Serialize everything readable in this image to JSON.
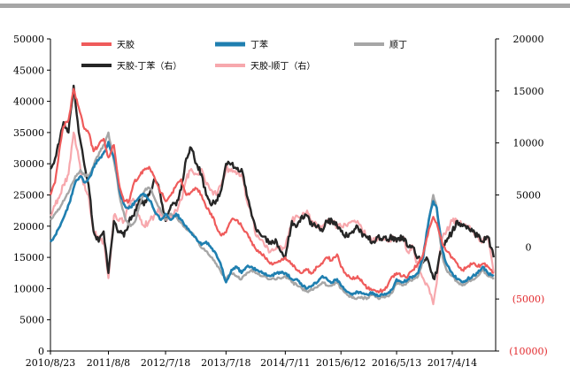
{
  "chart_data": {
    "type": "line",
    "title": "",
    "xlabel": "",
    "ylabel": "",
    "ylim": [
      0,
      50000
    ],
    "y2lim": [
      -10000,
      20000
    ],
    "y_ticks": [
      "0",
      "5000",
      "10000",
      "15000",
      "20000",
      "25000",
      "30000",
      "35000",
      "40000",
      "45000",
      "50000"
    ],
    "y2_ticks": [
      "(10000)",
      "(5000)",
      "0",
      "5000",
      "10000",
      "15000",
      "20000"
    ],
    "x_ticks": [
      "2010/8/23",
      "2011/8/8",
      "2012/7/18",
      "2013/7/18",
      "2014/7/11",
      "2015/6/12",
      "2016/5/13",
      "2017/4/14"
    ],
    "x_range": [
      "2010/8/23",
      "2018/1/1"
    ],
    "legend_placement": "top",
    "grid": false,
    "colors": {
      "tianjiao": "#ef5b5b",
      "dingben": "#1f7fb0",
      "shunding": "#a6a6a6",
      "tj_db": "#262626",
      "tj_sd": "#f7a8ad",
      "negative_tick": "#e2282c"
    },
    "series": [
      {
        "name": "天胶",
        "key": "tianjiao",
        "axis": "left",
        "x": [
          "2010/8/23",
          "2010/9/20",
          "2010/10/20",
          "2010/11/10",
          "2010/12/10",
          "2011/1/10",
          "2011/2/10",
          "2011/3/10",
          "2011/4/10",
          "2011/5/10",
          "2011/6/10",
          "2011/7/10",
          "2011/8/8",
          "2011/9/10",
          "2011/10/10",
          "2011/11/10",
          "2011/12/10",
          "2012/1/10",
          "2012/2/10",
          "2012/3/10",
          "2012/4/10",
          "2012/5/10",
          "2012/6/10",
          "2012/7/18",
          "2012/8/20",
          "2012/9/20",
          "2012/10/20",
          "2012/11/20",
          "2012/12/20",
          "2013/1/20",
          "2013/2/20",
          "2013/3/20",
          "2013/4/20",
          "2013/5/20",
          "2013/6/20",
          "2013/7/18",
          "2013/8/20",
          "2013/9/20",
          "2013/10/20",
          "2013/11/20",
          "2013/12/20",
          "2014/1/20",
          "2014/3/1",
          "2014/4/10",
          "2014/5/20",
          "2014/7/11",
          "2014/8/20",
          "2014/9/20",
          "2014/10/20",
          "2014/11/20",
          "2014/12/20",
          "2015/1/20",
          "2015/2/20",
          "2015/3/20",
          "2015/4/20",
          "2015/5/20",
          "2015/6/12",
          "2015/7/20",
          "2015/8/20",
          "2015/9/20",
          "2015/10/20",
          "2015/11/20",
          "2015/12/20",
          "2016/1/20",
          "2016/2/20",
          "2016/3/20",
          "2016/4/20",
          "2016/5/13",
          "2016/6/20",
          "2016/7/20",
          "2016/8/20",
          "2016/9/20",
          "2016/10/20",
          "2016/11/10",
          "2016/12/1",
          "2016/12/20",
          "2017/1/10",
          "2017/1/25",
          "2017/2/15",
          "2017/3/10",
          "2017/4/14",
          "2017/5/15",
          "2017/6/15",
          "2017/7/15",
          "2017/8/15",
          "2017/9/15",
          "2017/10/15",
          "2017/11/15",
          "2017/12/20"
        ],
        "values": [
          25000,
          27000,
          33000,
          36000,
          37000,
          42000,
          39000,
          36000,
          35000,
          32000,
          33000,
          34000,
          31000,
          33000,
          27000,
          24000,
          24000,
          27000,
          28000,
          29000,
          29500,
          28000,
          26000,
          24000,
          25000,
          26500,
          27500,
          25000,
          25500,
          26000,
          25000,
          23000,
          22000,
          20000,
          18500,
          19000,
          21000,
          21000,
          20000,
          19000,
          17500,
          16000,
          15500,
          14000,
          14200,
          15000,
          14000,
          13000,
          12500,
          13000,
          12500,
          13500,
          14000,
          15000,
          14500,
          15500,
          13500,
          12000,
          11500,
          12000,
          11000,
          10000,
          9800,
          9600,
          9700,
          10500,
          12000,
          12500,
          12000,
          12000,
          13000,
          14000,
          15500,
          18000,
          20000,
          21500,
          20500,
          19000,
          17000,
          16000,
          15000,
          14000,
          13000,
          13500,
          14000,
          13500,
          14000,
          13500,
          12500
        ]
      },
      {
        "name": "丁苯",
        "key": "dingben",
        "axis": "left",
        "x": [
          "2010/8/23",
          "2010/9/20",
          "2010/10/20",
          "2010/11/20",
          "2010/12/20",
          "2011/1/20",
          "2011/2/20",
          "2011/3/20",
          "2011/4/20",
          "2011/5/20",
          "2011/6/20",
          "2011/7/20",
          "2011/8/8",
          "2011/9/20",
          "2011/10/20",
          "2011/11/20",
          "2011/12/20",
          "2012/1/20",
          "2012/2/20",
          "2012/3/20",
          "2012/4/20",
          "2012/5/20",
          "2012/6/20",
          "2012/7/18",
          "2012/8/20",
          "2012/9/20",
          "2012/10/20",
          "2012/11/20",
          "2012/12/20",
          "2013/1/20",
          "2013/2/20",
          "2013/3/20",
          "2013/4/20",
          "2013/5/20",
          "2013/6/20",
          "2013/7/18",
          "2013/8/20",
          "2013/9/20",
          "2013/10/20",
          "2013/11/20",
          "2013/12/20",
          "2014/1/20",
          "2014/3/1",
          "2014/4/10",
          "2014/5/20",
          "2014/7/11",
          "2014/8/20",
          "2014/9/20",
          "2014/10/20",
          "2014/11/20",
          "2014/12/20",
          "2015/1/20",
          "2015/2/20",
          "2015/3/20",
          "2015/4/20",
          "2015/5/20",
          "2015/6/12",
          "2015/7/20",
          "2015/8/20",
          "2015/9/20",
          "2015/10/20",
          "2015/11/20",
          "2015/12/20",
          "2016/1/20",
          "2016/2/20",
          "2016/3/20",
          "2016/4/20",
          "2016/5/13",
          "2016/6/20",
          "2016/7/20",
          "2016/8/20",
          "2016/9/20",
          "2016/10/20",
          "2016/11/10",
          "2016/12/1",
          "2016/12/20",
          "2017/1/10",
          "2017/1/25",
          "2017/2/15",
          "2017/3/10",
          "2017/4/14",
          "2017/5/15",
          "2017/6/15",
          "2017/7/15",
          "2017/8/15",
          "2017/9/15",
          "2017/10/15",
          "2017/11/15",
          "2017/12/20"
        ],
        "values": [
          17500,
          18500,
          20000,
          22000,
          24000,
          27000,
          28000,
          27000,
          28000,
          30000,
          31000,
          32000,
          33500,
          30000,
          25000,
          23000,
          23000,
          24000,
          25000,
          25000,
          24000,
          22000,
          21000,
          22000,
          21000,
          22000,
          21000,
          20000,
          19000,
          18000,
          17000,
          17500,
          16500,
          15500,
          13500,
          11000,
          13000,
          13500,
          12500,
          13500,
          13500,
          13000,
          12500,
          12000,
          12500,
          12500,
          11500,
          11500,
          10500,
          10000,
          10500,
          11000,
          12000,
          11500,
          11000,
          11500,
          10500,
          9500,
          9000,
          9500,
          9200,
          9000,
          9400,
          8800,
          9000,
          9200,
          10000,
          11500,
          11000,
          11500,
          12000,
          12500,
          15000,
          19000,
          22000,
          24000,
          23000,
          20000,
          16000,
          14000,
          12500,
          11500,
          11000,
          11500,
          12000,
          12500,
          13500,
          12500,
          12000
        ]
      },
      {
        "name": "顺丁",
        "key": "shunding",
        "axis": "left",
        "x": [
          "2010/8/23",
          "2010/9/20",
          "2010/10/20",
          "2010/11/20",
          "2010/12/20",
          "2011/1/20",
          "2011/2/20",
          "2011/3/20",
          "2011/4/20",
          "2011/5/20",
          "2011/6/20",
          "2011/7/20",
          "2011/8/8",
          "2011/9/20",
          "2011/10/20",
          "2011/11/20",
          "2011/12/20",
          "2012/1/20",
          "2012/2/20",
          "2012/3/20",
          "2012/4/20",
          "2012/5/20",
          "2012/6/20",
          "2012/7/18",
          "2012/8/20",
          "2012/9/20",
          "2012/10/20",
          "2012/11/20",
          "2012/12/20",
          "2013/1/20",
          "2013/2/20",
          "2013/3/20",
          "2013/4/20",
          "2013/5/20",
          "2013/6/20",
          "2013/7/18",
          "2013/8/20",
          "2013/9/20",
          "2013/10/20",
          "2013/11/20",
          "2013/12/20",
          "2014/1/20",
          "2014/3/1",
          "2014/4/10",
          "2014/5/20",
          "2014/7/11",
          "2014/8/20",
          "2014/9/20",
          "2014/10/20",
          "2014/11/20",
          "2014/12/20",
          "2015/1/20",
          "2015/2/20",
          "2015/3/20",
          "2015/4/20",
          "2015/5/20",
          "2015/6/12",
          "2015/7/20",
          "2015/8/20",
          "2015/9/20",
          "2015/10/20",
          "2015/11/20",
          "2015/12/20",
          "2016/1/20",
          "2016/2/20",
          "2016/3/20",
          "2016/4/20",
          "2016/5/13",
          "2016/6/20",
          "2016/7/20",
          "2016/8/20",
          "2016/9/20",
          "2016/10/20",
          "2016/11/10",
          "2016/12/1",
          "2016/12/20",
          "2017/1/10",
          "2017/1/25",
          "2017/2/15",
          "2017/3/10",
          "2017/4/14",
          "2017/5/15",
          "2017/6/15",
          "2017/7/15",
          "2017/8/15",
          "2017/9/15",
          "2017/10/15",
          "2017/11/15",
          "2017/12/20"
        ],
        "values": [
          21000,
          22000,
          23000,
          24500,
          26000,
          28000,
          29000,
          28000,
          28500,
          30500,
          32000,
          33500,
          35000,
          29000,
          24000,
          21000,
          20000,
          21000,
          24000,
          26000,
          26000,
          24000,
          22500,
          21000,
          22000,
          21500,
          20500,
          19500,
          19000,
          18000,
          16500,
          16000,
          15000,
          14000,
          12500,
          11500,
          12500,
          12000,
          11500,
          12500,
          13000,
          12500,
          12000,
          11500,
          11500,
          12000,
          11000,
          10500,
          10000,
          9500,
          9800,
          10200,
          11000,
          10500,
          10500,
          11000,
          10000,
          9000,
          8500,
          8500,
          8500,
          8500,
          9000,
          8500,
          8600,
          8800,
          9500,
          11000,
          10500,
          11000,
          11500,
          12000,
          14500,
          18500,
          22000,
          25000,
          23000,
          19000,
          15000,
          13000,
          12000,
          11000,
          10500,
          11000,
          11500,
          12000,
          13000,
          12000,
          11500
        ]
      },
      {
        "name": "天胶-丁苯（右）",
        "key": "tj_db",
        "axis": "right",
        "x": [
          "2010/8/23",
          "2010/9/20",
          "2010/10/20",
          "2010/11/10",
          "2010/12/10",
          "2011/1/10",
          "2011/2/10",
          "2011/3/10",
          "2011/4/10",
          "2011/5/10",
          "2011/6/10",
          "2011/7/10",
          "2011/8/8",
          "2011/9/10",
          "2011/10/10",
          "2011/11/10",
          "2011/12/10",
          "2012/1/10",
          "2012/2/10",
          "2012/3/10",
          "2012/4/10",
          "2012/5/10",
          "2012/6/10",
          "2012/7/18",
          "2012/8/20",
          "2012/9/20",
          "2012/10/20",
          "2012/11/20",
          "2012/12/20",
          "2013/1/20",
          "2013/2/20",
          "2013/3/20",
          "2013/4/20",
          "2013/5/20",
          "2013/6/20",
          "2013/7/18",
          "2013/8/20",
          "2013/9/20",
          "2013/10/20",
          "2013/11/20",
          "2013/12/20",
          "2014/1/20",
          "2014/3/1",
          "2014/4/10",
          "2014/5/20",
          "2014/7/11",
          "2014/8/20",
          "2014/9/20",
          "2014/10/20",
          "2014/11/20",
          "2014/12/20",
          "2015/1/20",
          "2015/2/20",
          "2015/3/20",
          "2015/4/20",
          "2015/5/20",
          "2015/6/12",
          "2015/7/20",
          "2015/8/20",
          "2015/9/20",
          "2015/10/20",
          "2015/11/20",
          "2015/12/20",
          "2016/1/20",
          "2016/2/20",
          "2016/3/20",
          "2016/4/20",
          "2016/5/13",
          "2016/6/20",
          "2016/7/20",
          "2016/8/20",
          "2016/9/20",
          "2016/10/20",
          "2016/11/10",
          "2016/12/1",
          "2016/12/20",
          "2017/1/10",
          "2017/1/25",
          "2017/2/15",
          "2017/3/10",
          "2017/4/14",
          "2017/5/15",
          "2017/6/15",
          "2017/7/15",
          "2017/8/15",
          "2017/9/15",
          "2017/10/15",
          "2017/11/15",
          "2017/12/20"
        ],
        "values": [
          7500,
          8500,
          10500,
          12000,
          11000,
          15500,
          11000,
          8500,
          6000,
          1500,
          500,
          1500,
          -2500,
          2500,
          1500,
          1000,
          2500,
          3000,
          4500,
          4000,
          5000,
          6500,
          5500,
          2500,
          4000,
          4000,
          5500,
          8500,
          9500,
          8000,
          7000,
          5000,
          4000,
          4500,
          5500,
          8000,
          8000,
          7500,
          7500,
          5000,
          3000,
          1500,
          1000,
          500,
          500,
          -1000,
          2500,
          2000,
          3000,
          3000,
          2000,
          2000,
          1500,
          2500,
          2500,
          2000,
          1500,
          1000,
          1500,
          2000,
          1000,
          1000,
          500,
          1000,
          800,
          700,
          1000,
          500,
          1000,
          0,
          0,
          -1000,
          -1500,
          -1000,
          -2000,
          -3000,
          -2500,
          -1000,
          0,
          500,
          1500,
          2500,
          2000,
          2000,
          1500,
          1000,
          500,
          1000,
          -1000
        ]
      },
      {
        "name": "天胶-顺丁（右）",
        "key": "tj_sd",
        "axis": "right",
        "x": [
          "2010/8/23",
          "2010/9/20",
          "2010/10/20",
          "2010/11/10",
          "2010/12/10",
          "2011/1/10",
          "2011/2/10",
          "2011/3/10",
          "2011/4/10",
          "2011/5/10",
          "2011/6/10",
          "2011/7/10",
          "2011/8/8",
          "2011/9/10",
          "2011/10/10",
          "2011/11/10",
          "2011/12/10",
          "2012/1/10",
          "2012/2/10",
          "2012/3/10",
          "2012/4/10",
          "2012/5/10",
          "2012/6/10",
          "2012/7/18",
          "2012/8/20",
          "2012/9/20",
          "2012/10/20",
          "2012/11/20",
          "2012/12/20",
          "2013/1/20",
          "2013/2/20",
          "2013/3/20",
          "2013/4/20",
          "2013/5/20",
          "2013/6/20",
          "2013/7/18",
          "2013/8/20",
          "2013/9/20",
          "2013/10/20",
          "2013/11/20",
          "2013/12/20",
          "2014/1/20",
          "2014/3/1",
          "2014/4/10",
          "2014/5/20",
          "2014/7/11",
          "2014/8/20",
          "2014/9/20",
          "2014/10/20",
          "2014/11/20",
          "2014/12/20",
          "2015/1/20",
          "2015/2/20",
          "2015/3/20",
          "2015/4/20",
          "2015/5/20",
          "2015/6/12",
          "2015/7/20",
          "2015/8/20",
          "2015/9/20",
          "2015/10/20",
          "2015/11/20",
          "2015/12/20",
          "2016/1/20",
          "2016/2/20",
          "2016/3/20",
          "2016/4/20",
          "2016/5/13",
          "2016/6/20",
          "2016/7/20",
          "2016/8/20",
          "2016/9/20",
          "2016/10/20",
          "2016/11/10",
          "2016/12/1",
          "2016/12/20",
          "2017/1/10",
          "2017/1/25",
          "2017/2/15",
          "2017/3/10",
          "2017/4/14",
          "2017/5/15",
          "2017/6/15",
          "2017/7/15",
          "2017/8/15",
          "2017/9/15",
          "2017/10/15",
          "2017/11/15",
          "2017/12/20"
        ],
        "values": [
          3000,
          4000,
          5000,
          6000,
          7000,
          11000,
          8500,
          6000,
          5000,
          1500,
          1000,
          500,
          -3000,
          3000,
          2500,
          2500,
          4000,
          4500,
          3000,
          2000,
          2500,
          3000,
          3500,
          2500,
          3000,
          3500,
          4500,
          6500,
          7500,
          7000,
          7500,
          6000,
          5500,
          5000,
          6000,
          7500,
          7500,
          7000,
          7000,
          4500,
          3000,
          1000,
          500,
          -500,
          0,
          0,
          2500,
          3000,
          3000,
          3500,
          2500,
          2000,
          2000,
          2500,
          2500,
          2000,
          2000,
          2000,
          2500,
          2500,
          1500,
          1000,
          500,
          800,
          700,
          500,
          1000,
          500,
          1000,
          -500,
          0,
          -2000,
          -3000,
          -3500,
          -4500,
          -5500,
          -3500,
          -1000,
          1000,
          1500,
          2500,
          2500,
          2000,
          2000,
          1500,
          1000,
          500,
          1000,
          -2500
        ]
      }
    ]
  }
}
